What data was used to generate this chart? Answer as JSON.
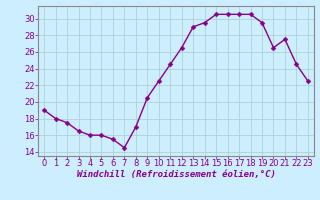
{
  "x": [
    0,
    1,
    2,
    3,
    4,
    5,
    6,
    7,
    8,
    9,
    10,
    11,
    12,
    13,
    14,
    15,
    16,
    17,
    18,
    19,
    20,
    21,
    22,
    23
  ],
  "y": [
    19.0,
    18.0,
    17.5,
    16.5,
    16.0,
    16.0,
    15.5,
    14.5,
    17.0,
    20.5,
    22.5,
    24.5,
    26.5,
    29.0,
    29.5,
    30.5,
    30.5,
    30.5,
    30.5,
    29.5,
    26.5,
    27.5,
    24.5,
    22.5
  ],
  "line_color": "#880088",
  "marker": "D",
  "markersize": 2.5,
  "linewidth": 1.0,
  "xlabel": "Windchill (Refroidissement éolien,°C)",
  "xlabel_fontsize": 6.5,
  "bg_color": "#cceeff",
  "grid_color": "#aacccc",
  "tick_color": "#880088",
  "tick_fontsize": 6,
  "ylim": [
    13.5,
    31.5
  ],
  "yticks": [
    14,
    16,
    18,
    20,
    22,
    24,
    26,
    28,
    30
  ],
  "xlim": [
    -0.5,
    23.5
  ],
  "xticks": [
    0,
    1,
    2,
    3,
    4,
    5,
    6,
    7,
    8,
    9,
    10,
    11,
    12,
    13,
    14,
    15,
    16,
    17,
    18,
    19,
    20,
    21,
    22,
    23
  ],
  "spine_color": "#888888"
}
